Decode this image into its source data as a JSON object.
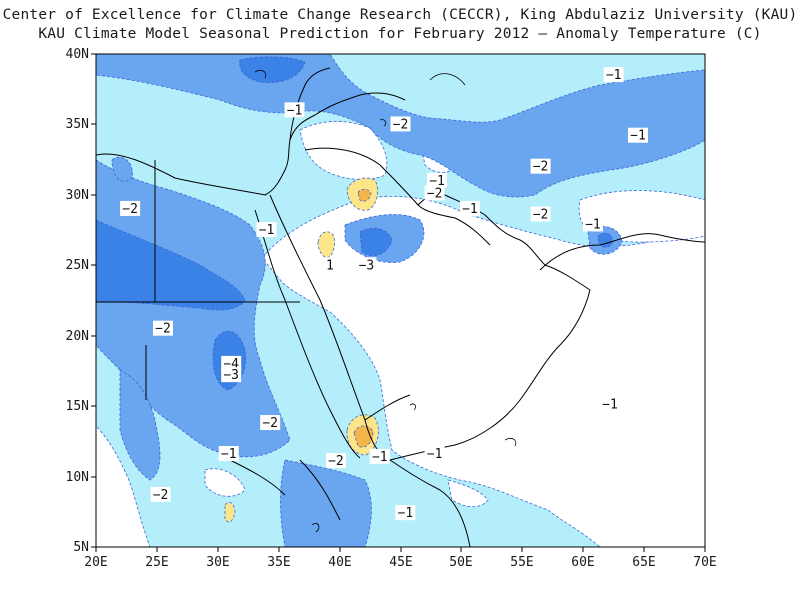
{
  "header": {
    "line1": "Center of Excellence for Climate Change Research (CECCR), King Abdulaziz University (KAU)",
    "line2": "KAU Climate Model Seasonal Prediction for February 2012 – Anomaly Temperature (C)"
  },
  "map": {
    "lon_range": [
      20,
      70
    ],
    "lat_range": [
      5,
      40
    ],
    "x_ticks": [
      "20E",
      "25E",
      "30E",
      "35E",
      "40E",
      "45E",
      "50E",
      "55E",
      "60E",
      "65E",
      "70E"
    ],
    "y_ticks": [
      "40N",
      "35N",
      "30N",
      "25N",
      "20N",
      "15N",
      "10N",
      "5N"
    ],
    "colors": {
      "neg3": "#3b82e6",
      "neg2": "#6aa6f0",
      "neg1": "#b4eefa",
      "zero": "#ffffff",
      "pos1": "#fde68a",
      "pos2": "#f4b64a",
      "contour": "#3b63d6",
      "coast": "#000000"
    },
    "contour_labels": [
      {
        "text": "−1",
        "lon": 62.5,
        "lat": 38.5
      },
      {
        "text": "−1",
        "lon": 36.3,
        "lat": 36.0
      },
      {
        "text": "−2",
        "lon": 45.0,
        "lat": 35.0
      },
      {
        "text": "−1",
        "lon": 64.5,
        "lat": 34.2
      },
      {
        "text": "−2",
        "lon": 56.5,
        "lat": 32.0
      },
      {
        "text": "−1",
        "lon": 48.0,
        "lat": 31.0
      },
      {
        "text": "−2",
        "lon": 47.8,
        "lat": 30.1
      },
      {
        "text": "−1",
        "lon": 50.7,
        "lat": 29.0
      },
      {
        "text": "−2",
        "lon": 56.5,
        "lat": 28.6
      },
      {
        "text": "−1",
        "lon": 60.8,
        "lat": 27.9
      },
      {
        "text": "−2",
        "lon": 22.8,
        "lat": 29.0
      },
      {
        "text": "−1",
        "lon": 34.0,
        "lat": 27.5
      },
      {
        "text": "1",
        "lon": 39.2,
        "lat": 25.0
      },
      {
        "text": "−3",
        "lon": 42.2,
        "lat": 25.0
      },
      {
        "text": "−2",
        "lon": 25.5,
        "lat": 20.5
      },
      {
        "text": "−4",
        "lon": 31.1,
        "lat": 18.0
      },
      {
        "text": "−3",
        "lon": 31.1,
        "lat": 17.2
      },
      {
        "text": "−2",
        "lon": 34.3,
        "lat": 13.8
      },
      {
        "text": "−1",
        "lon": 30.9,
        "lat": 11.6
      },
      {
        "text": "−2",
        "lon": 39.7,
        "lat": 11.1
      },
      {
        "text": "−1",
        "lon": 43.3,
        "lat": 11.4
      },
      {
        "text": "−1",
        "lon": 47.8,
        "lat": 11.6
      },
      {
        "text": "−1",
        "lon": 62.2,
        "lat": 15.1
      },
      {
        "text": "−2",
        "lon": 25.3,
        "lat": 8.7
      },
      {
        "text": "−1",
        "lon": 45.4,
        "lat": 7.4
      }
    ]
  }
}
